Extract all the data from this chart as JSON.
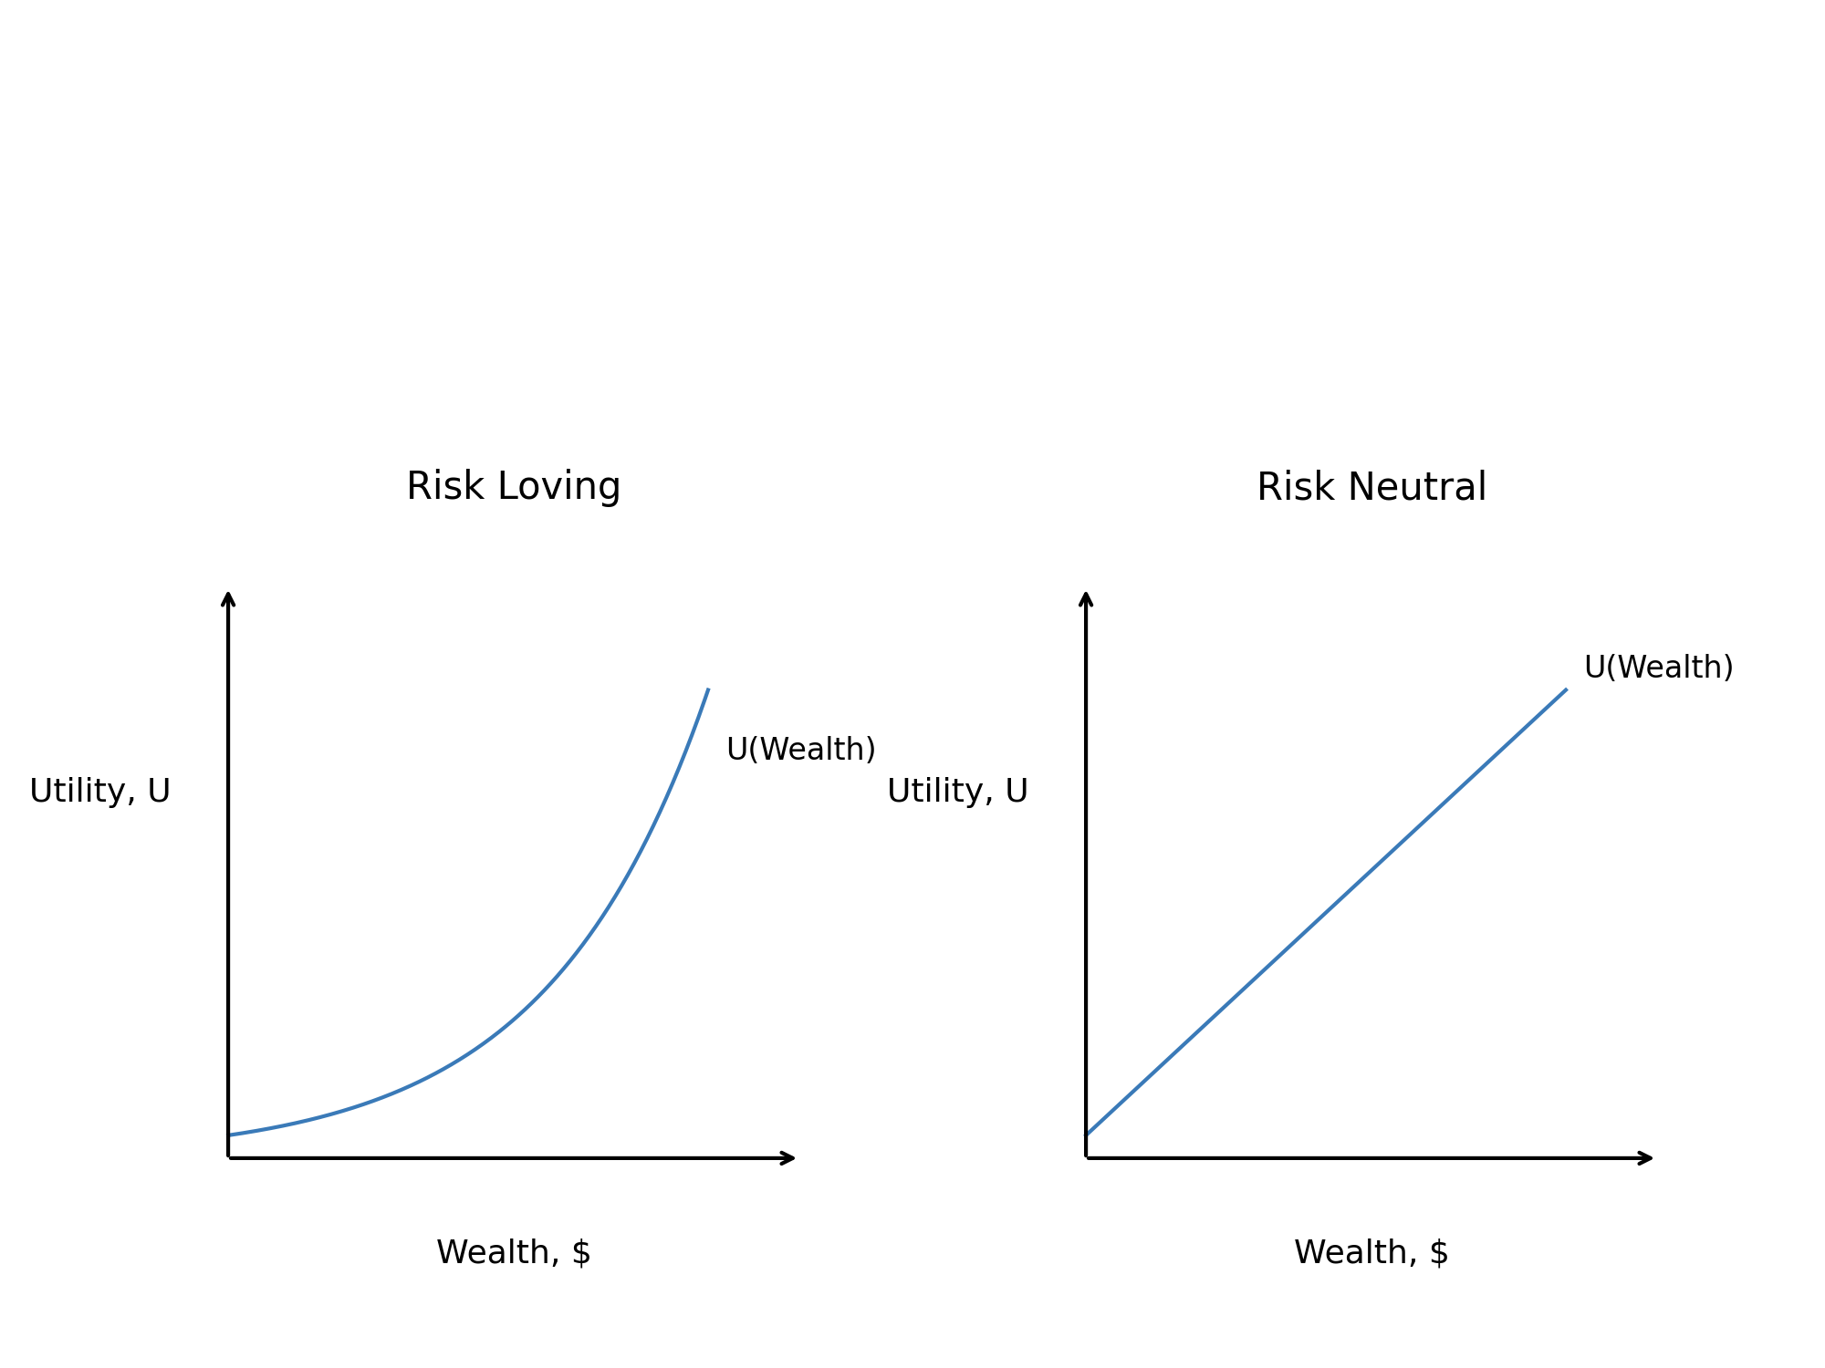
{
  "background_color": "#ffffff",
  "title_fontsize": 30,
  "label_fontsize": 26,
  "curve_label_fontsize": 24,
  "curve_color": "#3a7ab8",
  "curve_linewidth": 3.0,
  "axis_linewidth": 3.0,
  "left_panel": {
    "title": "Risk Loving",
    "xlabel": "Wealth, $",
    "ylabel": "Utility, U",
    "curve_label": "U(Wealth)"
  },
  "right_panel": {
    "title": "Risk Neutral",
    "xlabel": "Wealth, $",
    "ylabel": "Utility, U",
    "curve_label": "U(Wealth)"
  }
}
